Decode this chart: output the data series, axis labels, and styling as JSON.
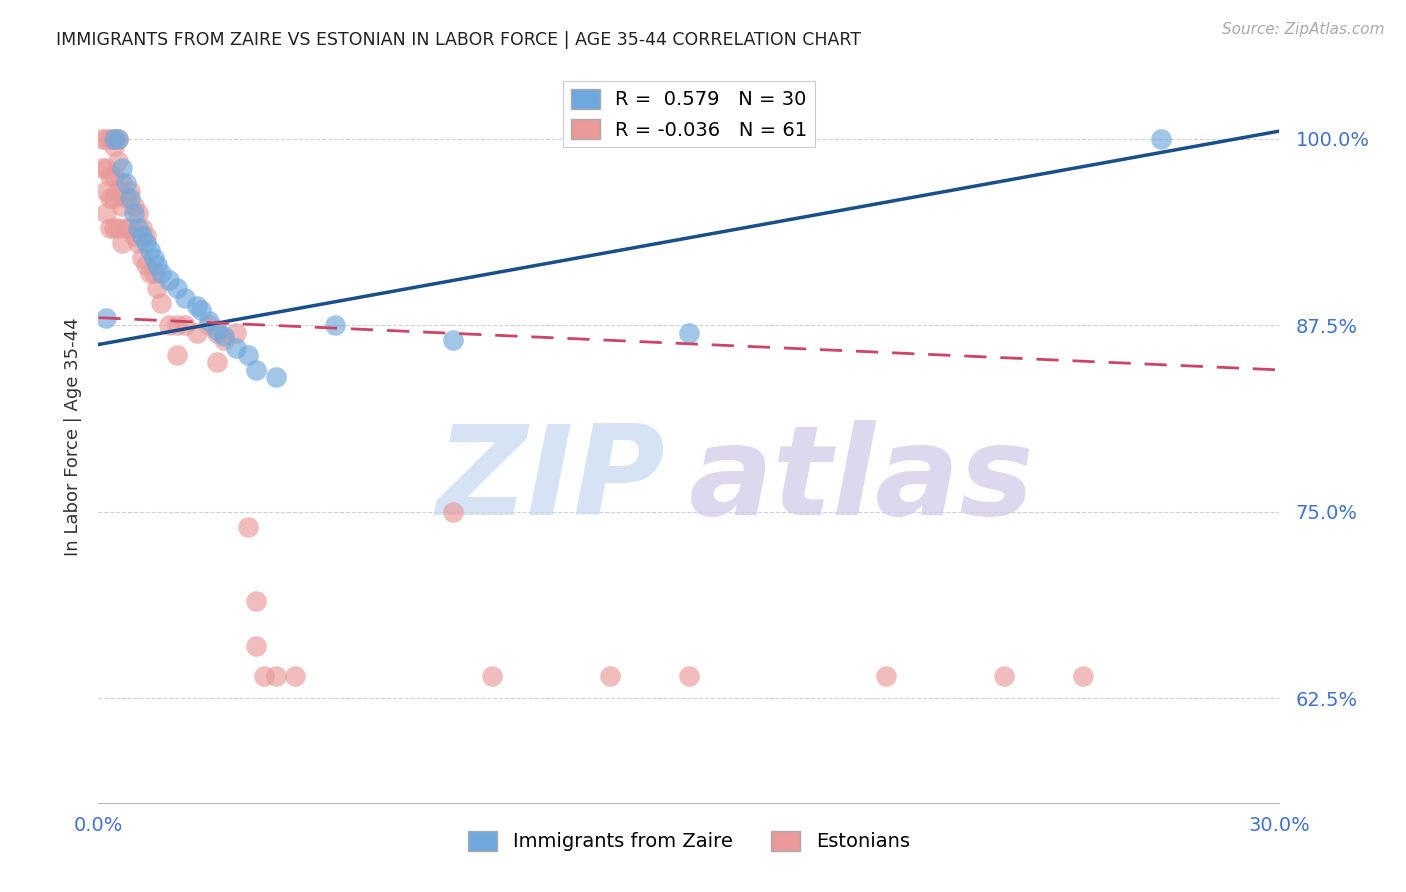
{
  "title": "IMMIGRANTS FROM ZAIRE VS ESTONIAN IN LABOR FORCE | AGE 35-44 CORRELATION CHART",
  "source": "Source: ZipAtlas.com",
  "ylabel": "In Labor Force | Age 35-44",
  "xlim": [
    0.0,
    0.3
  ],
  "ylim": [
    0.555,
    1.045
  ],
  "yticks": [
    0.625,
    0.75,
    0.875,
    1.0
  ],
  "ytick_labels": [
    "62.5%",
    "75.0%",
    "87.5%",
    "100.0%"
  ],
  "xticks": [
    0.0,
    0.05,
    0.1,
    0.15,
    0.2,
    0.25,
    0.3
  ],
  "xtick_labels": [
    "0.0%",
    "",
    "",
    "",
    "",
    "",
    "30.0%"
  ],
  "blue_R": 0.579,
  "blue_N": 30,
  "pink_R": -0.036,
  "pink_N": 61,
  "blue_color": "#6fa8dc",
  "pink_color": "#ea9999",
  "blue_line_color": "#1a4f8a",
  "pink_line_color": "#cc4466",
  "watermark_zip": "ZIP",
  "watermark_atlas": "atlas",
  "watermark_color_zip": "#c5d8f0",
  "watermark_color_atlas": "#d0c8e8",
  "blue_scatter_x": [
    0.002,
    0.004,
    0.005,
    0.006,
    0.007,
    0.008,
    0.009,
    0.01,
    0.011,
    0.012,
    0.013,
    0.014,
    0.015,
    0.016,
    0.018,
    0.02,
    0.022,
    0.025,
    0.026,
    0.028,
    0.03,
    0.032,
    0.035,
    0.038,
    0.04,
    0.045,
    0.06,
    0.09,
    0.15,
    0.27
  ],
  "blue_scatter_y": [
    0.88,
    1.0,
    1.0,
    0.98,
    0.97,
    0.96,
    0.95,
    0.94,
    0.935,
    0.93,
    0.925,
    0.92,
    0.915,
    0.91,
    0.905,
    0.9,
    0.893,
    0.888,
    0.885,
    0.878,
    0.872,
    0.868,
    0.86,
    0.855,
    0.845,
    0.84,
    0.875,
    0.865,
    0.87,
    1.0
  ],
  "pink_scatter_x": [
    0.001,
    0.001,
    0.002,
    0.002,
    0.002,
    0.002,
    0.003,
    0.003,
    0.003,
    0.003,
    0.004,
    0.004,
    0.004,
    0.004,
    0.004,
    0.005,
    0.005,
    0.005,
    0.005,
    0.006,
    0.006,
    0.006,
    0.007,
    0.007,
    0.008,
    0.008,
    0.009,
    0.009,
    0.01,
    0.01,
    0.011,
    0.011,
    0.012,
    0.012,
    0.013,
    0.014,
    0.015,
    0.016,
    0.018,
    0.02,
    0.02,
    0.022,
    0.025,
    0.028,
    0.03,
    0.03,
    0.032,
    0.035,
    0.038,
    0.04,
    0.04,
    0.042,
    0.045,
    0.05,
    0.09,
    0.1,
    0.13,
    0.15,
    0.2,
    0.23,
    0.25
  ],
  "pink_scatter_y": [
    1.0,
    0.98,
    1.0,
    0.98,
    0.965,
    0.95,
    1.0,
    0.975,
    0.96,
    0.94,
    1.0,
    0.995,
    0.975,
    0.96,
    0.94,
    1.0,
    0.985,
    0.965,
    0.94,
    0.97,
    0.955,
    0.93,
    0.96,
    0.94,
    0.965,
    0.94,
    0.955,
    0.935,
    0.95,
    0.93,
    0.94,
    0.92,
    0.935,
    0.915,
    0.91,
    0.91,
    0.9,
    0.89,
    0.875,
    0.875,
    0.855,
    0.875,
    0.87,
    0.875,
    0.87,
    0.85,
    0.865,
    0.87,
    0.74,
    0.69,
    0.66,
    0.64,
    0.64,
    0.64,
    0.75,
    0.64,
    0.64,
    0.64,
    0.64,
    0.64,
    0.64
  ],
  "blue_line_x": [
    0.0,
    0.3
  ],
  "blue_line_y": [
    0.862,
    1.005
  ],
  "pink_line_x": [
    0.0,
    0.3
  ],
  "pink_line_y": [
    0.88,
    0.845
  ]
}
